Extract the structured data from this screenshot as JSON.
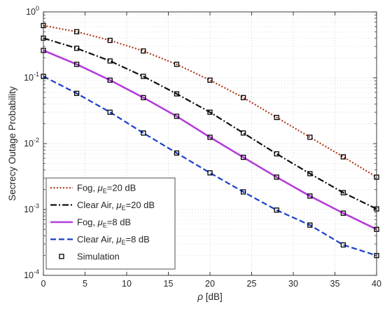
{
  "chart_data": {
    "type": "line",
    "title": "",
    "xlabel": "ρ [dB]",
    "ylabel": "Secrecy Outage Probability",
    "xlim": [
      0,
      40
    ],
    "ylim": [
      0.0001,
      1
    ],
    "yscale": "log",
    "grid": true,
    "legend_position": "bottom-left",
    "x_ticks": [
      0,
      5,
      10,
      15,
      20,
      25,
      30,
      35,
      40
    ],
    "y_ticks": [
      {
        "value": 1,
        "mantissa": "10",
        "exponent": "0"
      },
      {
        "value": 0.1,
        "mantissa": "10",
        "exponent": "-1"
      },
      {
        "value": 0.01,
        "mantissa": "10",
        "exponent": "-2"
      },
      {
        "value": 0.001,
        "mantissa": "10",
        "exponent": "-3"
      },
      {
        "value": 0.0001,
        "mantissa": "10",
        "exponent": "-4"
      }
    ],
    "x": [
      0,
      4,
      8,
      12,
      16,
      20,
      24,
      28,
      32,
      36,
      40
    ],
    "series": [
      {
        "name": "Fog, μE=20 dB",
        "legend_prefix": "Fog, ",
        "legend_mu": "μ",
        "legend_sub": "E",
        "legend_suffix": "=20 dB",
        "color": "#b03a1a",
        "dash": "2,2.5",
        "width": 2.2,
        "values": [
          0.62,
          0.5,
          0.37,
          0.255,
          0.16,
          0.092,
          0.05,
          0.025,
          0.0125,
          0.0063,
          0.0031
        ]
      },
      {
        "name": "Clear Air, μE=20 dB",
        "legend_prefix": "Clear Air, ",
        "legend_mu": "μ",
        "legend_sub": "E",
        "legend_suffix": "=20 dB",
        "color": "#111111",
        "dash": "9,3,2,3",
        "width": 2.2,
        "values": [
          0.4,
          0.28,
          0.18,
          0.105,
          0.057,
          0.03,
          0.0145,
          0.007,
          0.0035,
          0.0018,
          0.00102
        ]
      },
      {
        "name": "Fog, μE=8 dB",
        "legend_prefix": "Fog, ",
        "legend_mu": "μ",
        "legend_sub": "E",
        "legend_suffix": "=8 dB",
        "color": "#b43ed8",
        "dash": "",
        "width": 2.6,
        "values": [
          0.26,
          0.16,
          0.092,
          0.05,
          0.026,
          0.0125,
          0.0062,
          0.0031,
          0.0016,
          0.00088,
          0.0005
        ]
      },
      {
        "name": "Clear Air, μE=8 dB",
        "legend_prefix": "Clear Air, ",
        "legend_mu": "μ",
        "legend_sub": "E",
        "legend_suffix": "=8 dB",
        "color": "#1a3fc8",
        "dash": "8,4",
        "width": 2.2,
        "values": [
          0.105,
          0.058,
          0.03,
          0.0145,
          0.0072,
          0.0036,
          0.00185,
          0.00098,
          0.00058,
          0.00029,
          0.0002
        ]
      }
    ],
    "simulation": {
      "name": "Simulation",
      "marker": "square",
      "sim_x": [
        0,
        4,
        8,
        12,
        16,
        20,
        24,
        28,
        32,
        36,
        40
      ]
    }
  }
}
